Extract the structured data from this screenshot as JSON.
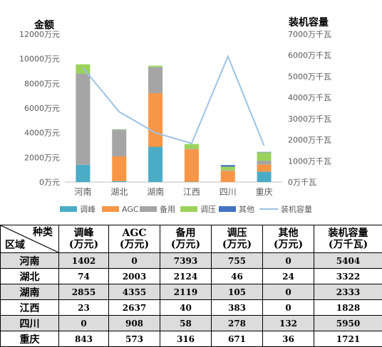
{
  "chart_data": {
    "type": "bar",
    "categories": [
      "河南",
      "湖北",
      "湖南",
      "江西",
      "四川",
      "重庆"
    ],
    "left_axis": {
      "title": "金额",
      "ticks": [
        "0万元",
        "2000万元",
        "4000万元",
        "6000万元",
        "8000万元",
        "10000万元",
        "12000万元"
      ],
      "ylim": [
        0,
        12000
      ]
    },
    "right_axis": {
      "title": "装机容量",
      "ticks": [
        "0万千瓦",
        "1000万千瓦",
        "2000万千瓦",
        "3000万千瓦",
        "4000万千瓦",
        "5000万千瓦",
        "6000万千瓦",
        "7000万千瓦"
      ],
      "ylim": [
        0,
        7000
      ]
    },
    "stacked": true,
    "series": [
      {
        "name": "调峰",
        "color": "#4BACC6",
        "values": [
          1402,
          74,
          2855,
          23,
          0,
          843
        ]
      },
      {
        "name": "AGC",
        "color": "#F79646",
        "values": [
          0,
          2003,
          4355,
          2637,
          908,
          573
        ]
      },
      {
        "name": "备用",
        "color": "#A5A5A5",
        "values": [
          7393,
          2124,
          2119,
          40,
          58,
          316
        ]
      },
      {
        "name": "调压",
        "color": "#9BD35A",
        "values": [
          755,
          46,
          105,
          383,
          278,
          671
        ]
      },
      {
        "name": "其他",
        "color": "#4472C4",
        "values": [
          0,
          24,
          0,
          0,
          132,
          36
        ]
      }
    ],
    "line_series": {
      "name": "装机容量",
      "color": "#9DC3E6",
      "axis": "right",
      "values": [
        5404,
        3322,
        2333,
        1828,
        5950,
        1721
      ]
    },
    "legend_position": "bottom"
  },
  "table": {
    "corner_top": "种类",
    "corner_bottom": "区域",
    "headers": [
      {
        "l1": "调峰",
        "l2": "(万元)"
      },
      {
        "l1": "AGC",
        "l2": "(万元)"
      },
      {
        "l1": "备用",
        "l2": "(万元)"
      },
      {
        "l1": "调压",
        "l2": "(万元)"
      },
      {
        "l1": "其他",
        "l2": "(万元)"
      },
      {
        "l1": "装机容量",
        "l2": "(万千瓦)"
      }
    ],
    "rows": [
      {
        "region": "河南",
        "cells": [
          "1402",
          "0",
          "7393",
          "755",
          "0",
          "5404"
        ]
      },
      {
        "region": "湖北",
        "cells": [
          "74",
          "2003",
          "2124",
          "46",
          "24",
          "3322"
        ]
      },
      {
        "region": "湖南",
        "cells": [
          "2855",
          "4355",
          "2119",
          "105",
          "0",
          "2333"
        ]
      },
      {
        "region": "江西",
        "cells": [
          "23",
          "2637",
          "40",
          "383",
          "0",
          "1828"
        ]
      },
      {
        "region": "四川",
        "cells": [
          "0",
          "908",
          "58",
          "278",
          "132",
          "5950"
        ]
      },
      {
        "region": "重庆",
        "cells": [
          "843",
          "573",
          "316",
          "671",
          "36",
          "1721"
        ]
      }
    ]
  }
}
